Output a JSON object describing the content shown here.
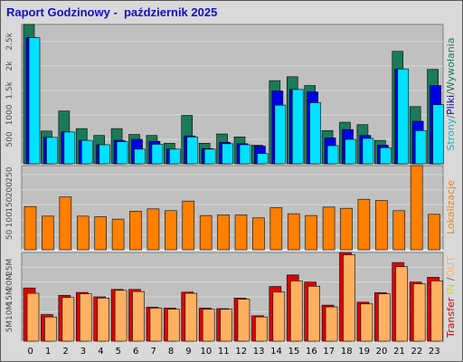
{
  "title": "Raport Godzinowy -  październik 2025",
  "colors": {
    "background": "#d9d9d9",
    "plot_bg": "#c0c0c0",
    "hits": "#1a7a5a",
    "files": "#0000e8",
    "pages": "#00e0ff",
    "visits": "#ff7f00",
    "kbytes": "#e00000",
    "kbytes_out": "#ffb060",
    "title": "#1010c8"
  },
  "legends": {
    "top": [
      {
        "text": "Strony",
        "color": "#00b8d8"
      },
      {
        "text": "/",
        "color": "#666666"
      },
      {
        "text": "Pliki",
        "color": "#0000c0"
      },
      {
        "text": "/",
        "color": "#666666"
      },
      {
        "text": "Wywołania",
        "color": "#1a7a5a"
      }
    ],
    "middle": [
      {
        "text": "Lokalizacje",
        "color": "#ff7f00"
      }
    ],
    "bottom": [
      {
        "text": "Transfer",
        "color": "#e00000"
      },
      {
        "text": " IN ",
        "color": "#d0d040"
      },
      {
        "text": "/",
        "color": "#666666"
      },
      {
        "text": "OUT",
        "color": "#ffb060"
      }
    ]
  },
  "chart_data": [
    {
      "type": "bar",
      "panel": "top",
      "categories": [
        "0",
        "1",
        "2",
        "3",
        "4",
        "5",
        "6",
        "7",
        "8",
        "9",
        "10",
        "11",
        "12",
        "13",
        "14",
        "15",
        "16",
        "17",
        "18",
        "19",
        "20",
        "21",
        "22",
        "23"
      ],
      "yticks": [
        "500",
        "1000",
        "1.5k",
        "2k",
        "2.5k"
      ],
      "tick_values": [
        500,
        1000,
        1500,
        2000,
        2500
      ],
      "ylim": [
        0,
        2850
      ],
      "series": [
        {
          "name": "Wywołania",
          "values": [
            2850,
            670,
            1080,
            720,
            580,
            720,
            600,
            580,
            420,
            990,
            420,
            610,
            550,
            380,
            1700,
            1780,
            1600,
            680,
            850,
            800,
            480,
            2300,
            1170,
            1930
          ]
        },
        {
          "name": "Pliki",
          "values": [
            2580,
            540,
            650,
            480,
            390,
            480,
            500,
            460,
            300,
            570,
            310,
            440,
            410,
            360,
            1490,
            1520,
            1470,
            530,
            700,
            580,
            380,
            1940,
            870,
            1600
          ]
        },
        {
          "name": "Strony",
          "values": [
            2580,
            540,
            650,
            480,
            390,
            450,
            300,
            400,
            300,
            550,
            300,
            410,
            390,
            210,
            1200,
            1520,
            1250,
            370,
            500,
            520,
            330,
            1940,
            680,
            1210
          ]
        }
      ]
    },
    {
      "type": "bar",
      "panel": "middle",
      "categories": [
        "0",
        "1",
        "2",
        "3",
        "4",
        "5",
        "6",
        "7",
        "8",
        "9",
        "10",
        "11",
        "12",
        "13",
        "14",
        "15",
        "16",
        "17",
        "18",
        "19",
        "20",
        "21",
        "22",
        "23"
      ],
      "yticks": [
        "50",
        "100",
        "150",
        "200",
        "250"
      ],
      "tick_values": [
        50,
        100,
        150,
        200,
        250
      ],
      "ylim": [
        0,
        280
      ],
      "series": [
        {
          "name": "Lokalizacje",
          "values": [
            144,
            112,
            176,
            112,
            110,
            102,
            128,
            136,
            130,
            162,
            114,
            116,
            116,
            106,
            140,
            120,
            114,
            142,
            138,
            168,
            164,
            130,
            280,
            118
          ]
        }
      ]
    },
    {
      "type": "bar",
      "panel": "bottom",
      "categories": [
        "0",
        "1",
        "2",
        "3",
        "4",
        "5",
        "6",
        "7",
        "8",
        "9",
        "10",
        "11",
        "12",
        "13",
        "14",
        "15",
        "16",
        "17",
        "18",
        "19",
        "20",
        "21",
        "22",
        "23"
      ],
      "yticks": [
        "5M",
        "10M",
        "15M",
        "20M",
        "25M"
      ],
      "tick_values": [
        5,
        10,
        15,
        20,
        25
      ],
      "ylim": [
        0,
        30
      ],
      "series": [
        {
          "name": "IN",
          "values": [
            18,
            9,
            15.5,
            16.5,
            15,
            17.5,
            17.5,
            11.5,
            11.2,
            16.6,
            11.2,
            11,
            14.6,
            8.6,
            18.5,
            22.4,
            20,
            12.2,
            30,
            13.2,
            16.4,
            26.6,
            20,
            21.6
          ]
        },
        {
          "name": "OUT",
          "values": [
            16.2,
            8.2,
            14.8,
            16,
            14.6,
            17.2,
            16.8,
            11.2,
            10.8,
            16.2,
            10.8,
            10.8,
            14.2,
            8.2,
            16.6,
            20.4,
            18.6,
            11.6,
            29.2,
            12.6,
            16,
            25.2,
            19.4,
            20.4
          ]
        }
      ]
    }
  ]
}
